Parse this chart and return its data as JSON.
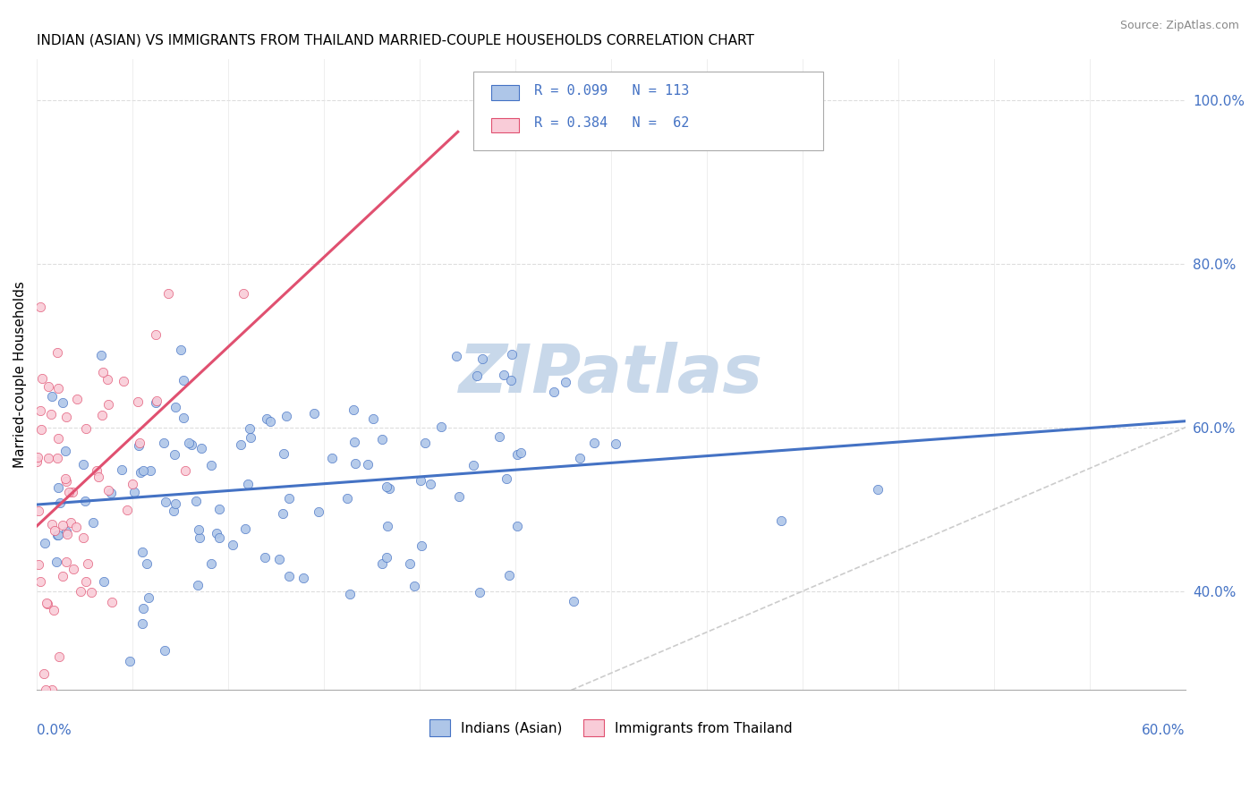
{
  "title": "INDIAN (ASIAN) VS IMMIGRANTS FROM THAILAND MARRIED-COUPLE HOUSEHOLDS CORRELATION CHART",
  "source": "Source: ZipAtlas.com",
  "ylabel": "Married-couple Households",
  "legend1_label": "R = 0.099   N = 113",
  "legend2_label": "R = 0.384   N =  62",
  "scatter1_color": "#aec6e8",
  "scatter2_color": "#f9ccd8",
  "line1_color": "#4472c4",
  "line2_color": "#e05070",
  "diag_color": "#cccccc",
  "watermark": "ZIPatlas",
  "watermark_color": "#c8d8ea",
  "R1": 0.099,
  "N1": 113,
  "R2": 0.384,
  "N2": 62,
  "xmin": 0.0,
  "xmax": 0.6,
  "ymin": 0.28,
  "ymax": 1.05,
  "legend_label1": "Indians (Asian)",
  "legend_label2": "Immigrants from Thailand",
  "ytick_vals": [
    1.0,
    0.8,
    0.6,
    0.4
  ],
  "ytick_labels": [
    "100.0%",
    "80.0%",
    "60.0%",
    "40.0%"
  ],
  "right_tick_color": "#4472c4",
  "xlabel_color": "#4472c4",
  "title_fontsize": 11,
  "axis_label_fontsize": 11,
  "tick_fontsize": 11
}
